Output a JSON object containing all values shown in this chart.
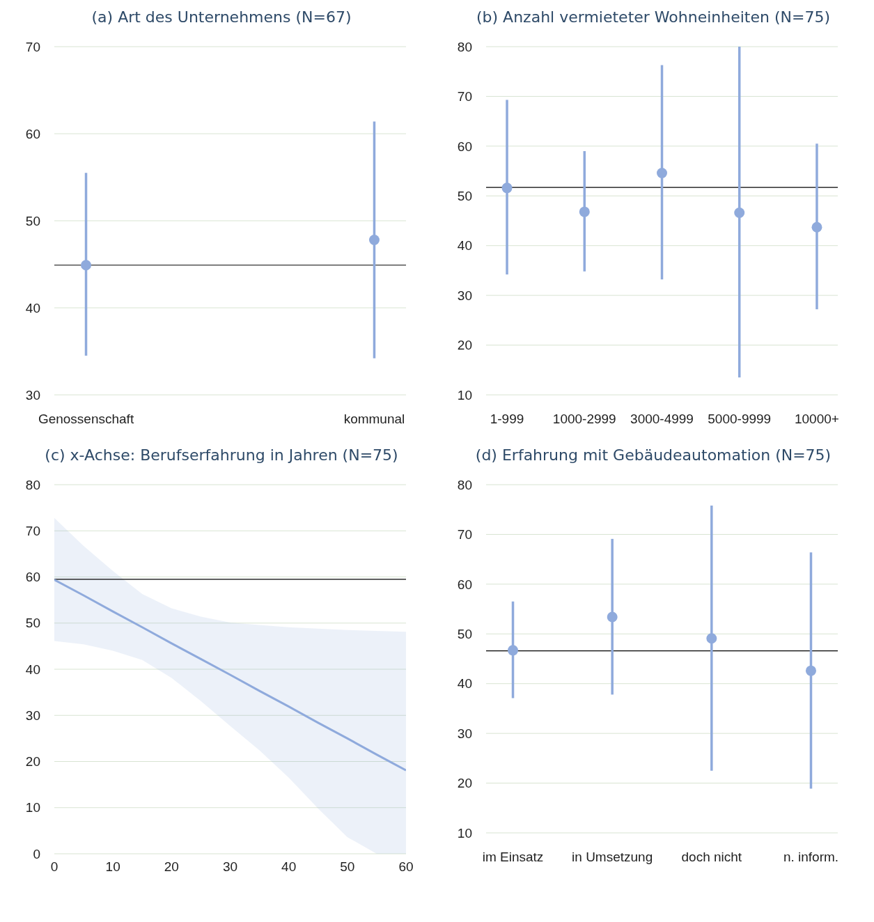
{
  "chart_data": [
    {
      "type": "scatter",
      "title": "(a) Art des Unternehmens (N=67)",
      "categories": [
        "Genossenschaft",
        "kommunal"
      ],
      "series": [
        {
          "color": "#8faadc",
          "values": [
            44.9,
            47.8
          ],
          "errors": [
            [
              34.5,
              55.5
            ],
            [
              34.2,
              61.4
            ]
          ]
        }
      ],
      "ylim": [
        30,
        70
      ],
      "yticks": [
        30,
        40,
        50,
        60,
        70
      ],
      "grid": "y",
      "marker": "circle",
      "ref_lines": [
        {
          "axis": "y",
          "value": 44.9,
          "color": "#000000"
        }
      ]
    },
    {
      "type": "scatter",
      "title": "(b) Anzahl vermieteter Wohneinheiten (N=75)",
      "categories": [
        "1-999",
        "1000-2999",
        "3000-4999",
        "5000-9999",
        "10000+"
      ],
      "series": [
        {
          "color": "#8faadc",
          "values": [
            51.6,
            46.8,
            54.6,
            46.6,
            43.7
          ],
          "errors": [
            [
              34.2,
              69.3
            ],
            [
              34.8,
              59
            ],
            [
              33.2,
              76.3
            ],
            [
              13.5,
              80
            ],
            [
              27.2,
              60.5
            ]
          ]
        }
      ],
      "ylim": [
        10,
        80
      ],
      "yticks": [
        10,
        20,
        30,
        40,
        50,
        60,
        70,
        80
      ],
      "grid": "y",
      "marker": "circle",
      "ref_lines": [
        {
          "axis": "y",
          "value": 51.7,
          "color": "#000000"
        }
      ]
    },
    {
      "type": "line",
      "title": "(c) x-Achse: Berufserfahrung in Jahren (N=75)",
      "series": [
        {
          "color": "#8faadc",
          "x": [
            0,
            5,
            10,
            15,
            20,
            25,
            30,
            35,
            40,
            45,
            50,
            55,
            60
          ],
          "values": [
            59.4,
            56.0,
            52.5,
            49.1,
            45.6,
            42.2,
            38.8,
            35.3,
            31.9,
            28.4,
            25.0,
            21.5,
            18.1
          ],
          "lower": [
            46.1,
            45.4,
            44.0,
            42.0,
            38.1,
            33.1,
            27.7,
            22.4,
            16.5,
            9.8,
            3.6,
            0,
            0
          ],
          "upper": [
            72.8,
            66.7,
            61.3,
            56.3,
            53.2,
            51.4,
            50.1,
            49.6,
            49.1,
            48.8,
            48.5,
            48.3,
            48.1
          ]
        }
      ],
      "xlim": [
        0,
        60
      ],
      "xticks": [
        0,
        10,
        20,
        30,
        40,
        50,
        60
      ],
      "ylim": [
        0,
        80
      ],
      "yticks": [
        0,
        10,
        20,
        30,
        40,
        50,
        60,
        70,
        80
      ],
      "grid": "y",
      "marker": "none",
      "line_style": "solid",
      "ref_lines": [
        {
          "axis": "y",
          "value": 59.5,
          "color": "#000000"
        }
      ]
    },
    {
      "type": "scatter",
      "title": "(d) Erfahrung mit Gebäudeautomation (N=75)",
      "categories": [
        "im Einsatz",
        "in Umsetzung",
        "doch nicht",
        "n. inform."
      ],
      "series": [
        {
          "color": "#8faadc",
          "values": [
            46.7,
            53.4,
            49.1,
            42.6
          ],
          "errors": [
            [
              37.1,
              56.5
            ],
            [
              37.8,
              69.1
            ],
            [
              22.5,
              75.8
            ],
            [
              18.9,
              66.4
            ]
          ]
        }
      ],
      "ylim": [
        10,
        80
      ],
      "yticks": [
        10,
        20,
        30,
        40,
        50,
        60,
        70,
        80
      ],
      "grid": "y",
      "marker": "circle",
      "ref_lines": [
        {
          "axis": "y",
          "value": 46.6,
          "color": "#000000"
        }
      ]
    }
  ]
}
